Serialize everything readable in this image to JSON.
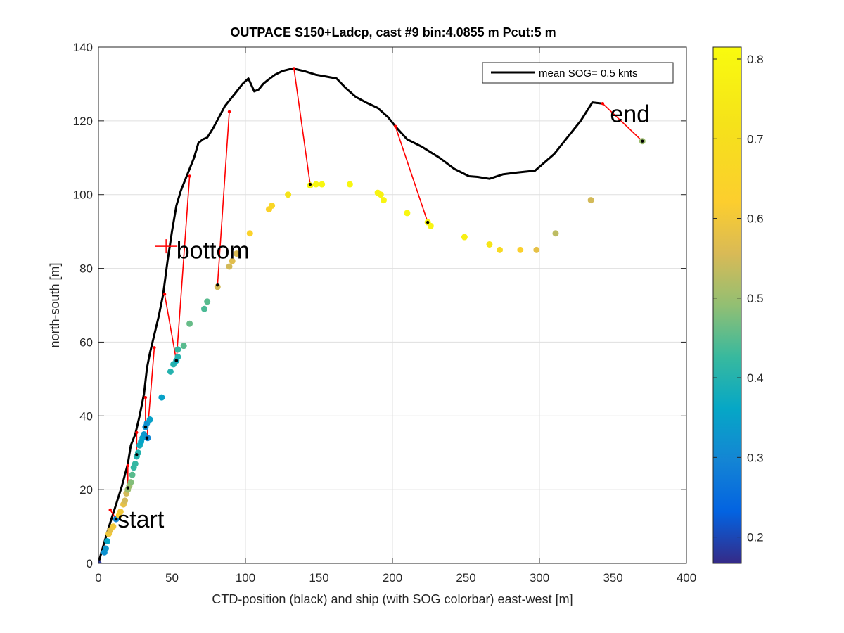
{
  "chart_data": {
    "type": "scatter",
    "title": "OUTPACE S150+Ladcp, cast #9 bin:4.0855 m  Pcut:5 m",
    "xlabel": "CTD-position (black) and ship (with SOG colorbar) east-west [m]",
    "ylabel": "north-south [m]",
    "xlim": [
      0,
      400
    ],
    "ylim": [
      0,
      140
    ],
    "xticks": [
      0,
      50,
      100,
      150,
      200,
      250,
      300,
      350,
      400
    ],
    "yticks": [
      0,
      20,
      40,
      60,
      80,
      100,
      120,
      140
    ],
    "grid": true,
    "legend": {
      "placement": "top-right",
      "entries": [
        "mean SOG=  0.5 knts"
      ]
    },
    "colorbar": {
      "colormap": "parula",
      "clim": [
        0.167,
        0.815
      ],
      "ticks": [
        0.2,
        0.3,
        0.4,
        0.5,
        0.6,
        0.7,
        0.8
      ]
    },
    "annotations": [
      {
        "text": "start",
        "x": 13,
        "y": 12
      },
      {
        "text": "bottom",
        "x": 53,
        "y": 85
      },
      {
        "text": "end",
        "x": 348,
        "y": 122
      }
    ],
    "bottom_marker": {
      "x": 46,
      "y": 86
    },
    "series": [
      {
        "name": "mean SOG=  0.5 knts",
        "kind": "line",
        "color": "#000000",
        "x": [
          0,
          2,
          5,
          8,
          12,
          16,
          20,
          22,
          25,
          28,
          31,
          33,
          35,
          38,
          41,
          44,
          47,
          50,
          53,
          56,
          59,
          62,
          65,
          68,
          71,
          74,
          78,
          82,
          86,
          90,
          94,
          98,
          102,
          106,
          109,
          112,
          115,
          120,
          125,
          132,
          140,
          148,
          155,
          162,
          168,
          175,
          182,
          190,
          197,
          202,
          210,
          220,
          232,
          242,
          252,
          258,
          266,
          275,
          285,
          297,
          310,
          320,
          328,
          336,
          343
        ],
        "y": [
          0,
          3,
          7,
          11,
          16,
          21,
          27,
          32,
          35,
          40,
          46,
          53,
          57,
          62,
          67,
          73,
          82,
          90,
          97,
          101,
          104,
          107,
          110,
          114,
          115,
          115.5,
          118,
          121,
          124,
          126,
          128,
          130,
          131.5,
          128,
          128.5,
          130,
          131,
          132.5,
          133.5,
          134.2,
          133.5,
          132.5,
          132,
          131.5,
          129,
          126.5,
          125,
          123.5,
          121,
          118.5,
          115,
          113,
          110,
          107,
          105,
          104.8,
          104.3,
          105.5,
          106,
          106.5,
          111,
          116,
          120,
          125,
          124.7
        ]
      },
      {
        "name": "ship",
        "kind": "scatter",
        "points": [
          [
            0,
            0,
            0.18
          ],
          [
            4,
            3,
            0.32
          ],
          [
            5,
            4,
            0.33
          ],
          [
            6,
            6,
            0.36
          ],
          [
            7,
            8,
            0.6
          ],
          [
            8,
            9,
            0.58
          ],
          [
            10,
            10,
            0.6
          ],
          [
            12,
            12,
            0.3
          ],
          [
            14,
            13,
            0.63
          ],
          [
            15,
            14,
            0.6
          ],
          [
            17,
            16,
            0.58
          ],
          [
            18,
            17,
            0.55
          ],
          [
            19,
            19,
            0.55
          ],
          [
            20,
            20,
            0.5
          ],
          [
            21,
            21,
            0.5
          ],
          [
            22,
            22,
            0.48
          ],
          [
            23,
            24,
            0.45
          ],
          [
            24,
            26,
            0.42
          ],
          [
            25,
            27,
            0.42
          ],
          [
            26,
            29,
            0.4
          ],
          [
            27,
            30,
            0.4
          ],
          [
            28,
            32,
            0.38
          ],
          [
            29,
            33,
            0.36
          ],
          [
            30,
            34,
            0.35
          ],
          [
            31,
            35,
            0.33
          ],
          [
            32,
            37,
            0.32
          ],
          [
            33,
            38,
            0.32
          ],
          [
            33.5,
            34,
            0.3
          ],
          [
            35,
            39,
            0.35
          ],
          [
            43,
            45,
            0.35
          ],
          [
            49,
            52,
            0.4
          ],
          [
            51,
            54,
            0.4
          ],
          [
            53,
            55,
            0.38
          ],
          [
            54,
            56,
            0.4
          ],
          [
            54,
            58,
            0.42
          ],
          [
            58,
            59,
            0.45
          ],
          [
            62,
            65,
            0.46
          ],
          [
            72,
            69,
            0.44
          ],
          [
            74,
            71,
            0.45
          ],
          [
            81,
            75,
            0.55
          ],
          [
            89,
            80.5,
            0.55
          ],
          [
            91,
            82,
            0.57
          ],
          [
            94,
            84,
            0.56
          ],
          [
            103,
            89.5,
            0.64
          ],
          [
            116,
            96,
            0.64
          ],
          [
            118,
            97,
            0.66
          ],
          [
            129,
            100,
            0.72
          ],
          [
            144,
            102.5,
            0.8
          ],
          [
            148,
            102.8,
            0.8
          ],
          [
            152,
            102.8,
            0.8
          ],
          [
            171,
            102.8,
            0.8
          ],
          [
            190,
            100.5,
            0.79
          ],
          [
            192,
            100,
            0.78
          ],
          [
            194,
            98.5,
            0.79
          ],
          [
            210,
            95,
            0.8
          ],
          [
            224,
            92.5,
            0.8
          ],
          [
            226,
            91.5,
            0.79
          ],
          [
            249,
            88.5,
            0.77
          ],
          [
            266,
            86.5,
            0.73
          ],
          [
            273,
            85,
            0.68
          ],
          [
            287,
            85,
            0.63
          ],
          [
            298,
            85,
            0.58
          ],
          [
            311,
            89.5,
            0.53
          ],
          [
            335,
            98.5,
            0.55
          ],
          [
            370,
            114.5,
            0.5
          ]
        ]
      },
      {
        "name": "connectors",
        "kind": "segments",
        "color": "#ff0000",
        "pairs": [
          [
            [
              8,
              14.5
            ],
            [
              12,
              12
            ]
          ],
          [
            [
              20,
              26.5
            ],
            [
              20,
              20.5
            ]
          ],
          [
            [
              26,
              35.5
            ],
            [
              26,
              29.5
            ]
          ],
          [
            [
              32,
              45
            ],
            [
              32,
              37
            ]
          ],
          [
            [
              38,
              58.5
            ],
            [
              33,
              34
            ]
          ],
          [
            [
              45,
              73
            ],
            [
              53,
              55
            ]
          ],
          [
            [
              62,
              105
            ],
            [
              53,
              55
            ]
          ],
          [
            [
              89,
              122.5
            ],
            [
              81,
              75.5
            ]
          ],
          [
            [
              133,
              134.2
            ],
            [
              144,
              102.8
            ]
          ],
          [
            [
              202,
              118.5
            ],
            [
              224,
              92.5
            ]
          ],
          [
            [
              343,
              124.7
            ],
            [
              370,
              114.5
            ]
          ]
        ]
      }
    ]
  }
}
